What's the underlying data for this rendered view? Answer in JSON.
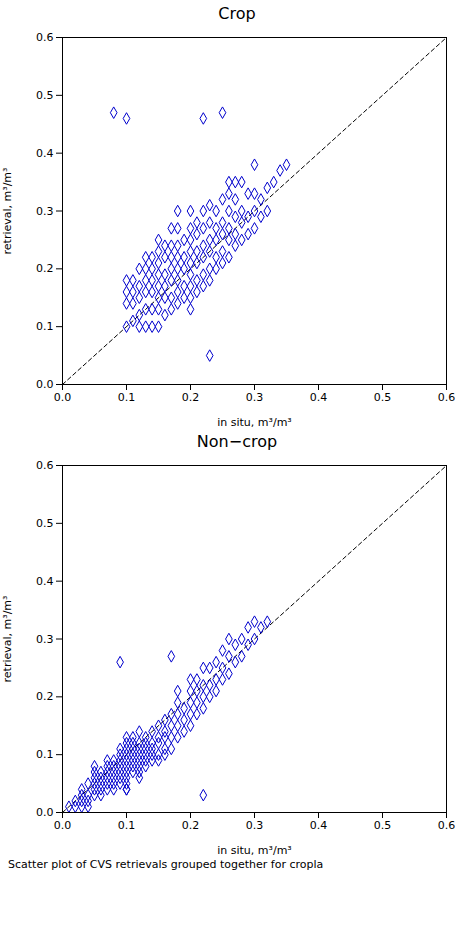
{
  "chart_data": [
    {
      "type": "scatter",
      "title": "Crop",
      "xlabel": "in situ, m³/m³",
      "ylabel": "retrieval, m³/m³",
      "xlim": [
        0.0,
        0.6
      ],
      "ylim": [
        0.0,
        0.6
      ],
      "xticks": [
        {
          "value": 0,
          "label": "0.0"
        },
        0.1,
        0.2,
        0.3,
        0.4,
        0.5,
        0.6
      ],
      "yticks": [
        {
          "value": 0,
          "label": "0.0"
        },
        0.1,
        0.2,
        0.3,
        0.4,
        0.5,
        0.6
      ],
      "color": "#0000CD",
      "marker": "diamond",
      "x": [
        0.08,
        0.1,
        0.1,
        0.1,
        0.1,
        0.11,
        0.11,
        0.11,
        0.11,
        0.12,
        0.12,
        0.12,
        0.12,
        0.12,
        0.13,
        0.13,
        0.13,
        0.13,
        0.13,
        0.13,
        0.14,
        0.14,
        0.14,
        0.14,
        0.14,
        0.14,
        0.15,
        0.15,
        0.15,
        0.15,
        0.15,
        0.15,
        0.15,
        0.15,
        0.16,
        0.16,
        0.16,
        0.16,
        0.16,
        0.16,
        0.17,
        0.17,
        0.17,
        0.17,
        0.17,
        0.17,
        0.17,
        0.18,
        0.18,
        0.18,
        0.18,
        0.18,
        0.18,
        0.18,
        0.18,
        0.19,
        0.19,
        0.19,
        0.19,
        0.19,
        0.2,
        0.2,
        0.2,
        0.2,
        0.2,
        0.2,
        0.2,
        0.2,
        0.2,
        0.21,
        0.21,
        0.21,
        0.21,
        0.21,
        0.21,
        0.22,
        0.22,
        0.22,
        0.22,
        0.22,
        0.22,
        0.23,
        0.23,
        0.23,
        0.23,
        0.23,
        0.23,
        0.23,
        0.24,
        0.24,
        0.24,
        0.24,
        0.24,
        0.25,
        0.25,
        0.25,
        0.25,
        0.25,
        0.26,
        0.26,
        0.26,
        0.26,
        0.26,
        0.27,
        0.27,
        0.27,
        0.27,
        0.27,
        0.28,
        0.28,
        0.28,
        0.28,
        0.29,
        0.29,
        0.29,
        0.3,
        0.3,
        0.3,
        0.3,
        0.31,
        0.31,
        0.32,
        0.32,
        0.33,
        0.34,
        0.35,
        0.1,
        0.22,
        0.25,
        0.26
      ],
      "y": [
        0.47,
        0.1,
        0.14,
        0.16,
        0.18,
        0.11,
        0.14,
        0.16,
        0.18,
        0.1,
        0.12,
        0.15,
        0.17,
        0.2,
        0.1,
        0.13,
        0.16,
        0.18,
        0.2,
        0.22,
        0.1,
        0.13,
        0.16,
        0.18,
        0.2,
        0.22,
        0.1,
        0.13,
        0.15,
        0.17,
        0.19,
        0.21,
        0.23,
        0.25,
        0.12,
        0.15,
        0.17,
        0.19,
        0.22,
        0.24,
        0.13,
        0.15,
        0.18,
        0.2,
        0.22,
        0.24,
        0.27,
        0.14,
        0.16,
        0.18,
        0.2,
        0.22,
        0.24,
        0.27,
        0.3,
        0.15,
        0.17,
        0.2,
        0.22,
        0.25,
        0.13,
        0.15,
        0.17,
        0.19,
        0.21,
        0.23,
        0.25,
        0.27,
        0.3,
        0.16,
        0.18,
        0.21,
        0.23,
        0.26,
        0.28,
        0.17,
        0.19,
        0.22,
        0.24,
        0.27,
        0.3,
        0.18,
        0.2,
        0.23,
        0.25,
        0.28,
        0.31,
        0.05,
        0.2,
        0.22,
        0.25,
        0.27,
        0.3,
        0.21,
        0.23,
        0.26,
        0.28,
        0.32,
        0.22,
        0.25,
        0.27,
        0.3,
        0.33,
        0.24,
        0.26,
        0.29,
        0.32,
        0.35,
        0.25,
        0.28,
        0.3,
        0.35,
        0.26,
        0.29,
        0.33,
        0.27,
        0.3,
        0.33,
        0.38,
        0.29,
        0.32,
        0.3,
        0.34,
        0.35,
        0.37,
        0.38,
        0.46,
        0.46,
        0.47,
        0.35
      ]
    },
    {
      "type": "scatter",
      "title": "Non−crop",
      "xlabel": "in situ, m³/m³",
      "ylabel": "retrieval, m³/m³",
      "xlim": [
        0.0,
        0.6
      ],
      "ylim": [
        0.0,
        0.6
      ],
      "xticks": [
        {
          "value": 0,
          "label": "0.0"
        },
        0.1,
        0.2,
        0.3,
        0.4,
        0.5,
        0.6
      ],
      "yticks": [
        {
          "value": 0,
          "label": "0.0"
        },
        0.1,
        0.2,
        0.3,
        0.4,
        0.5,
        0.6
      ],
      "color": "#0000CD",
      "marker": "diamond",
      "caption": "Scatter plot of CVS retrievals grouped together for cropla",
      "x": [
        0.01,
        0.02,
        0.02,
        0.03,
        0.03,
        0.03,
        0.03,
        0.04,
        0.04,
        0.04,
        0.04,
        0.05,
        0.05,
        0.05,
        0.05,
        0.05,
        0.05,
        0.06,
        0.06,
        0.06,
        0.06,
        0.06,
        0.07,
        0.07,
        0.07,
        0.07,
        0.07,
        0.07,
        0.08,
        0.08,
        0.08,
        0.08,
        0.08,
        0.08,
        0.09,
        0.09,
        0.09,
        0.09,
        0.09,
        0.09,
        0.09,
        0.1,
        0.1,
        0.1,
        0.1,
        0.1,
        0.1,
        0.1,
        0.1,
        0.1,
        0.1,
        0.11,
        0.11,
        0.11,
        0.11,
        0.11,
        0.11,
        0.11,
        0.12,
        0.12,
        0.12,
        0.12,
        0.12,
        0.12,
        0.12,
        0.12,
        0.13,
        0.13,
        0.13,
        0.13,
        0.13,
        0.13,
        0.14,
        0.14,
        0.14,
        0.14,
        0.14,
        0.15,
        0.15,
        0.15,
        0.15,
        0.15,
        0.16,
        0.16,
        0.16,
        0.16,
        0.16,
        0.17,
        0.17,
        0.17,
        0.17,
        0.18,
        0.18,
        0.18,
        0.18,
        0.18,
        0.19,
        0.19,
        0.19,
        0.2,
        0.2,
        0.2,
        0.2,
        0.2,
        0.21,
        0.21,
        0.21,
        0.21,
        0.22,
        0.22,
        0.22,
        0.22,
        0.23,
        0.23,
        0.23,
        0.24,
        0.24,
        0.24,
        0.25,
        0.25,
        0.25,
        0.26,
        0.26,
        0.26,
        0.27,
        0.27,
        0.28,
        0.28,
        0.29,
        0.29,
        0.3,
        0.3,
        0.31,
        0.32,
        0.09,
        0.1,
        0.17,
        0.22
      ],
      "y": [
        0.01,
        0.01,
        0.02,
        0.01,
        0.02,
        0.03,
        0.04,
        0.01,
        0.02,
        0.03,
        0.05,
        0.03,
        0.04,
        0.05,
        0.06,
        0.07,
        0.08,
        0.03,
        0.04,
        0.05,
        0.06,
        0.07,
        0.04,
        0.05,
        0.06,
        0.07,
        0.08,
        0.09,
        0.04,
        0.05,
        0.06,
        0.07,
        0.08,
        0.09,
        0.05,
        0.06,
        0.07,
        0.08,
        0.09,
        0.1,
        0.11,
        0.04,
        0.05,
        0.06,
        0.07,
        0.08,
        0.09,
        0.1,
        0.11,
        0.12,
        0.13,
        0.07,
        0.08,
        0.09,
        0.1,
        0.11,
        0.12,
        0.13,
        0.06,
        0.07,
        0.08,
        0.09,
        0.1,
        0.11,
        0.12,
        0.14,
        0.08,
        0.09,
        0.1,
        0.11,
        0.12,
        0.13,
        0.09,
        0.1,
        0.11,
        0.12,
        0.14,
        0.09,
        0.1,
        0.12,
        0.13,
        0.15,
        0.1,
        0.11,
        0.13,
        0.14,
        0.16,
        0.11,
        0.13,
        0.15,
        0.17,
        0.13,
        0.15,
        0.17,
        0.19,
        0.21,
        0.14,
        0.16,
        0.18,
        0.15,
        0.17,
        0.19,
        0.21,
        0.23,
        0.17,
        0.19,
        0.21,
        0.23,
        0.18,
        0.2,
        0.22,
        0.25,
        0.2,
        0.22,
        0.25,
        0.21,
        0.23,
        0.26,
        0.23,
        0.25,
        0.28,
        0.24,
        0.27,
        0.3,
        0.26,
        0.29,
        0.27,
        0.3,
        0.29,
        0.32,
        0.3,
        0.33,
        0.32,
        0.33,
        0.26,
        0.04,
        0.27,
        0.03
      ]
    }
  ]
}
